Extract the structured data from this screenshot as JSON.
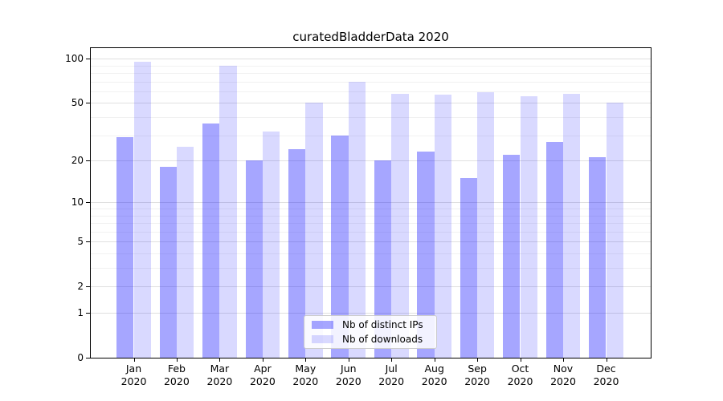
{
  "chart_data": {
    "type": "bar",
    "title": "curatedBladderData 2020",
    "categories": [
      {
        "month": "Jan",
        "year": "2020"
      },
      {
        "month": "Feb",
        "year": "2020"
      },
      {
        "month": "Mar",
        "year": "2020"
      },
      {
        "month": "Apr",
        "year": "2020"
      },
      {
        "month": "May",
        "year": "2020"
      },
      {
        "month": "Jun",
        "year": "2020"
      },
      {
        "month": "Jul",
        "year": "2020"
      },
      {
        "month": "Aug",
        "year": "2020"
      },
      {
        "month": "Sep",
        "year": "2020"
      },
      {
        "month": "Oct",
        "year": "2020"
      },
      {
        "month": "Nov",
        "year": "2020"
      },
      {
        "month": "Dec",
        "year": "2020"
      }
    ],
    "series": [
      {
        "name": "Nb of distinct IPs",
        "color": "rgba(0,0,255,0.35)",
        "hex_on_white": "#a6a6ff",
        "values": [
          29,
          18,
          36,
          20,
          24,
          30,
          20,
          23,
          15,
          22,
          27,
          21
        ]
      },
      {
        "name": "Nb of downloads",
        "color": "rgba(0,0,255,0.15)",
        "hex_on_white": "#d9d9ff",
        "values": [
          95,
          25,
          90,
          32,
          50,
          70,
          58,
          57,
          59,
          56,
          58,
          50
        ]
      }
    ],
    "y_scale": "log1p",
    "ylim": [
      0,
      118
    ],
    "y_ticks": [
      0,
      1,
      2,
      5,
      10,
      20,
      50,
      100
    ],
    "y_minor_ticks": [
      3,
      4,
      6,
      7,
      8,
      9,
      30,
      40,
      60,
      70,
      80,
      90
    ],
    "grid": true,
    "legend_position": "lower center"
  },
  "colors": {
    "background": "#ffffff",
    "axis": "#000000",
    "grid_major": "#e0e0e0",
    "grid_minor": "#f1f1f1",
    "legend_border": "#cccccc",
    "text": "#000000"
  }
}
